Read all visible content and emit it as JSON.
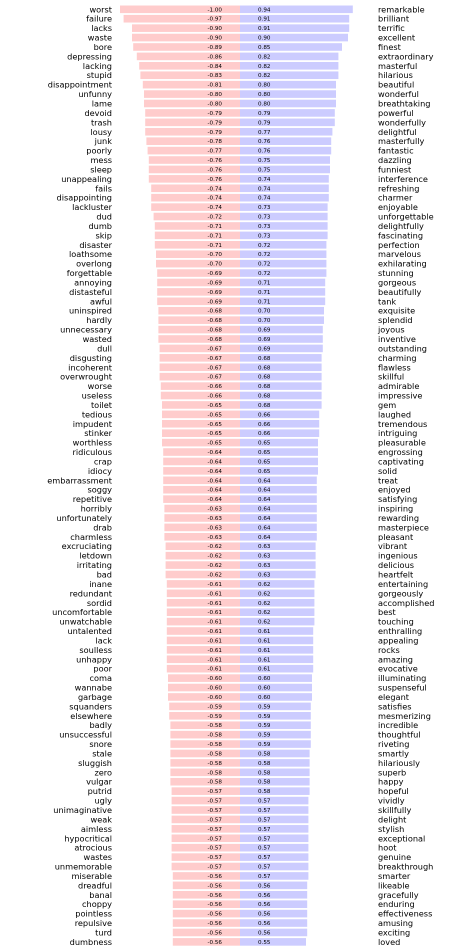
{
  "chart_data": {
    "type": "bar",
    "orientation": "horizontal-diverging",
    "title": "",
    "xlabel": "",
    "ylabel": "",
    "colors": {
      "negative": "#ffcccc",
      "positive": "#ccccff"
    },
    "series": [
      {
        "name": "",
        "words": [
          "worst",
          "failure",
          "lacks",
          "waste",
          "bore",
          "depressing",
          "lacking",
          "stupid",
          "disappointment",
          "unfunny",
          "lame",
          "devoid",
          "trash",
          "lousy",
          "junk",
          "poorly",
          "mess",
          "sleep",
          "unappealing",
          "fails",
          "disappointing",
          "lackluster",
          "dud",
          "dumb",
          "skip",
          "disaster",
          "loathsome",
          "overlong",
          "forgettable",
          "annoying",
          "distasteful",
          "awful",
          "uninspired",
          "hardly",
          "unnecessary",
          "wasted",
          "dull",
          "disgusting",
          "incoherent",
          "overwrought",
          "worse",
          "useless",
          "toilet",
          "tedious",
          "impudent",
          "stinker",
          "worthless",
          "ridiculous",
          "crap",
          "idiocy",
          "embarrassment",
          "soggy",
          "repetitive",
          "horribly",
          "unfortunately",
          "drab",
          "charmless",
          "excruciating",
          "letdown",
          "irritating",
          "bad",
          "inane",
          "redundant",
          "sordid",
          "uncomfortable",
          "unwatchable",
          "untalented",
          "lack",
          "soulless",
          "unhappy",
          "poor",
          "coma",
          "wannabe",
          "garbage",
          "squanders",
          "elsewhere",
          "badly",
          "unsuccessful",
          "snore",
          "stale",
          "sluggish",
          "zero",
          "vulgar",
          "putrid",
          "ugly",
          "unimaginative",
          "weak",
          "aimless",
          "hypocritical",
          "atrocious",
          "wastes",
          "unmemorable",
          "miserable",
          "dreadful",
          "banal",
          "choppy",
          "pointless",
          "repulsive",
          "turd",
          "dumbness"
        ],
        "values": [
          -1.0,
          -0.97,
          -0.9,
          -0.9,
          -0.89,
          -0.86,
          -0.84,
          -0.83,
          -0.81,
          -0.8,
          -0.8,
          -0.79,
          -0.79,
          -0.79,
          -0.78,
          -0.77,
          -0.76,
          -0.76,
          -0.76,
          -0.74,
          -0.74,
          -0.74,
          -0.72,
          -0.71,
          -0.71,
          -0.71,
          -0.7,
          -0.7,
          -0.69,
          -0.69,
          -0.69,
          -0.69,
          -0.68,
          -0.68,
          -0.68,
          -0.68,
          -0.67,
          -0.67,
          -0.67,
          -0.67,
          -0.66,
          -0.66,
          -0.65,
          -0.65,
          -0.65,
          -0.65,
          -0.65,
          -0.64,
          -0.64,
          -0.64,
          -0.64,
          -0.64,
          -0.64,
          -0.63,
          -0.63,
          -0.63,
          -0.63,
          -0.62,
          -0.62,
          -0.62,
          -0.62,
          -0.61,
          -0.61,
          -0.61,
          -0.61,
          -0.61,
          -0.61,
          -0.61,
          -0.61,
          -0.61,
          -0.61,
          -0.6,
          -0.6,
          -0.6,
          -0.59,
          -0.59,
          -0.58,
          -0.58,
          -0.58,
          -0.58,
          -0.58,
          -0.58,
          -0.58,
          -0.57,
          -0.57,
          -0.57,
          -0.57,
          -0.57,
          -0.57,
          -0.57,
          -0.57,
          -0.57,
          -0.56,
          -0.56,
          -0.56,
          -0.56,
          -0.56,
          -0.56,
          -0.56,
          -0.56
        ]
      },
      {
        "name": "",
        "words": [
          "remarkable",
          "brilliant",
          "terrific",
          "excellent",
          "finest",
          "extraordinary",
          "masterful",
          "hilarious",
          "beautiful",
          "wonderful",
          "breathtaking",
          "powerful",
          "wonderfully",
          "delightful",
          "masterfully",
          "fantastic",
          "dazzling",
          "funniest",
          "interference",
          "refreshing",
          "charmer",
          "enjoyable",
          "unforgettable",
          "delightfully",
          "fascinating",
          "perfection",
          "marvelous",
          "exhilarating",
          "stunning",
          "gorgeous",
          "beautifully",
          "tank",
          "exquisite",
          "splendid",
          "joyous",
          "inventive",
          "outstanding",
          "charming",
          "flawless",
          "skillful",
          "admirable",
          "impressive",
          "gem",
          "laughed",
          "tremendous",
          "intriguing",
          "pleasurable",
          "engrossing",
          "captivating",
          "solid",
          "treat",
          "enjoyed",
          "satisfying",
          "inspiring",
          "rewarding",
          "masterpiece",
          "pleasant",
          "vibrant",
          "ingenious",
          "delicious",
          "heartfelt",
          "entertaining",
          "gorgeously",
          "accomplished",
          "best",
          "touching",
          "enthralling",
          "appealing",
          "rocks",
          "amazing",
          "evocative",
          "illuminating",
          "suspenseful",
          "elegant",
          "satisfies",
          "mesmerizing",
          "incredible",
          "thoughtful",
          "riveting",
          "smartly",
          "hilariously",
          "superb",
          "happy",
          "hopeful",
          "vividly",
          "skillfully",
          "delight",
          "stylish",
          "exceptional",
          "hoot",
          "genuine",
          "breakthrough",
          "smarter",
          "likeable",
          "gracefully",
          "enduring",
          "effectiveness",
          "amusing",
          "exciting",
          "loved"
        ],
        "values": [
          0.94,
          0.91,
          0.91,
          0.9,
          0.85,
          0.82,
          0.82,
          0.82,
          0.8,
          0.8,
          0.8,
          0.79,
          0.79,
          0.77,
          0.76,
          0.76,
          0.75,
          0.75,
          0.74,
          0.74,
          0.74,
          0.73,
          0.73,
          0.73,
          0.73,
          0.72,
          0.72,
          0.72,
          0.72,
          0.71,
          0.71,
          0.71,
          0.7,
          0.7,
          0.69,
          0.69,
          0.69,
          0.68,
          0.68,
          0.68,
          0.68,
          0.68,
          0.68,
          0.66,
          0.66,
          0.66,
          0.65,
          0.65,
          0.65,
          0.65,
          0.64,
          0.64,
          0.64,
          0.64,
          0.64,
          0.64,
          0.64,
          0.63,
          0.63,
          0.63,
          0.63,
          0.62,
          0.62,
          0.62,
          0.62,
          0.62,
          0.61,
          0.61,
          0.61,
          0.61,
          0.61,
          0.6,
          0.6,
          0.6,
          0.59,
          0.59,
          0.59,
          0.59,
          0.59,
          0.58,
          0.58,
          0.58,
          0.58,
          0.58,
          0.57,
          0.57,
          0.57,
          0.57,
          0.57,
          0.57,
          0.57,
          0.57,
          0.57,
          0.56,
          0.56,
          0.56,
          0.56,
          0.56,
          0.56,
          0.55
        ]
      }
    ],
    "xlim": [
      -1,
      1
    ],
    "grid": false,
    "legend": "none"
  }
}
